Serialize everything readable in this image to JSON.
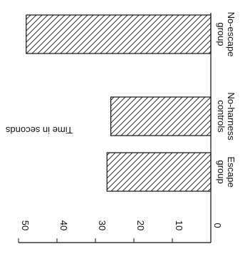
{
  "chart_data": {
    "type": "bar",
    "categories": [
      {
        "label_lines": [
          "Escape",
          "group"
        ],
        "value": 27
      },
      {
        "label_lines": [
          "No-harness",
          "controls"
        ],
        "value": 26
      },
      {
        "label_lines": [
          "No-escape",
          "group"
        ],
        "value": 48
      }
    ],
    "values": [
      27,
      26,
      48
    ],
    "ylabel": "Time in seconds",
    "yticks": [
      "0",
      "10",
      "20",
      "30",
      "40",
      "50"
    ],
    "ylim": [
      0,
      50
    ],
    "orientation": "horizontal-bars-rotated",
    "bar_fill": "diagonal-hatch",
    "colors": {
      "ink": "#111111",
      "background": "#ffffff"
    }
  }
}
